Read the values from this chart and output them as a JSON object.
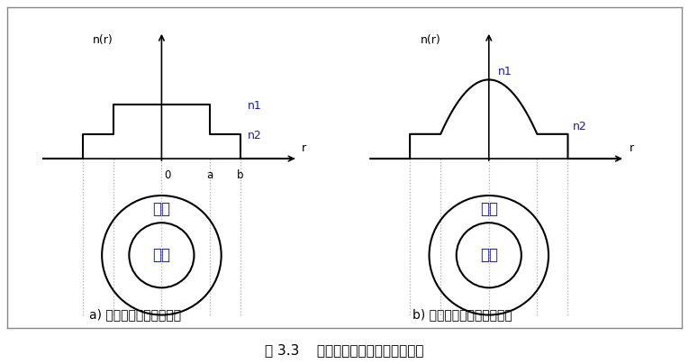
{
  "title": "图 3.3    光纤纤芯折射率的剖面分布图",
  "title_fontsize": 11,
  "label_a": "a) 均匀光纤的折射率分布",
  "label_b": "b) 非均匀光纤的折射率分布",
  "label_fontsize": 10,
  "fig_bg": "#ffffff",
  "text_color": "#000000",
  "blue_color": "#1a1aaa",
  "dashed_color": "#aaaaaa",
  "core_text": "纤芯",
  "cladding_text": "包层",
  "n1_label": "n1",
  "n2_label": "n2",
  "nr_label": "n(r)",
  "r_label": "r",
  "border_color": "#888888"
}
